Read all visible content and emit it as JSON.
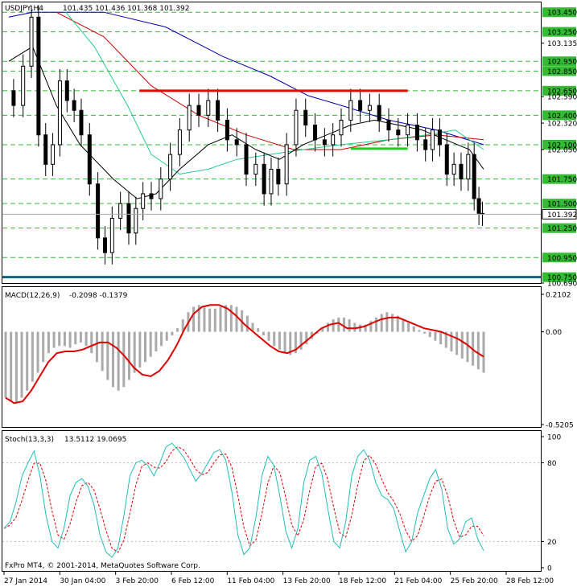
{
  "chart_data": [
    {
      "type": "line",
      "panel": "price",
      "title": "USDJPY,H4",
      "ohlc": {
        "open": 101.435,
        "high": 101.436,
        "low": 101.368,
        "close": 101.392
      },
      "ohlc_text": "101.435 101.436 101.368 101.392",
      "ylim": [
        100.69,
        103.55
      ],
      "ytick_labels": [
        "103.450",
        "103.250",
        "103.135",
        "102.950",
        "102.850",
        "102.650",
        "102.590",
        "102.400",
        "102.320",
        "102.100",
        "102.050",
        "101.750",
        "101.500",
        "101.392",
        "101.250",
        "100.950",
        "100.750",
        "100.690"
      ],
      "ytick_values": [
        103.45,
        103.25,
        103.135,
        102.95,
        102.85,
        102.65,
        102.59,
        102.4,
        102.32,
        102.1,
        102.05,
        101.75,
        101.5,
        101.392,
        101.25,
        100.95,
        100.75,
        100.69
      ],
      "highlighted_levels": [
        103.45,
        103.25,
        102.95,
        102.85,
        102.65,
        102.4,
        102.1,
        101.75,
        101.5,
        101.25,
        100.95,
        100.75
      ],
      "current_price": 101.392,
      "support_line": 100.75,
      "resistance_segment": {
        "level": 102.65,
        "x_start": 0.275,
        "x_end": 0.84
      },
      "green_segment": {
        "level": 102.06,
        "x_start": 0.72,
        "x_end": 0.84
      },
      "close_path": [
        [
          0.0,
          102.65
        ],
        [
          0.02,
          102.5
        ],
        [
          0.04,
          102.9
        ],
        [
          0.055,
          103.4
        ],
        [
          0.07,
          102.2
        ],
        [
          0.085,
          101.9
        ],
        [
          0.1,
          102.1
        ],
        [
          0.115,
          102.75
        ],
        [
          0.13,
          102.55
        ],
        [
          0.145,
          102.45
        ],
        [
          0.16,
          102.2
        ],
        [
          0.18,
          101.7
        ],
        [
          0.195,
          101.15
        ],
        [
          0.21,
          101.0
        ],
        [
          0.225,
          101.35
        ],
        [
          0.245,
          101.5
        ],
        [
          0.26,
          101.2
        ],
        [
          0.275,
          101.45
        ],
        [
          0.29,
          101.6
        ],
        [
          0.31,
          101.55
        ],
        [
          0.33,
          101.75
        ],
        [
          0.35,
          102.0
        ],
        [
          0.37,
          102.25
        ],
        [
          0.39,
          102.5
        ],
        [
          0.41,
          102.4
        ],
        [
          0.43,
          102.55
        ],
        [
          0.45,
          102.35
        ],
        [
          0.47,
          102.15
        ],
        [
          0.49,
          102.1
        ],
        [
          0.51,
          101.8
        ],
        [
          0.53,
          101.9
        ],
        [
          0.545,
          101.6
        ],
        [
          0.56,
          101.85
        ],
        [
          0.575,
          101.7
        ],
        [
          0.595,
          102.1
        ],
        [
          0.615,
          102.45
        ],
        [
          0.635,
          102.3
        ],
        [
          0.655,
          102.15
        ],
        [
          0.675,
          102.1
        ],
        [
          0.69,
          102.2
        ],
        [
          0.71,
          102.35
        ],
        [
          0.73,
          102.55
        ],
        [
          0.75,
          102.45
        ],
        [
          0.77,
          102.5
        ],
        [
          0.79,
          102.35
        ],
        [
          0.81,
          102.25
        ],
        [
          0.83,
          102.2
        ],
        [
          0.85,
          102.3
        ],
        [
          0.87,
          102.15
        ],
        [
          0.885,
          102.05
        ],
        [
          0.9,
          102.25
        ],
        [
          0.915,
          102.1
        ],
        [
          0.93,
          101.8
        ],
        [
          0.945,
          101.9
        ],
        [
          0.96,
          101.75
        ],
        [
          0.975,
          102.0
        ],
        [
          0.985,
          101.55
        ],
        [
          0.995,
          101.4
        ],
        [
          1.0,
          101.392
        ]
      ],
      "ma_lines": [
        {
          "color": "#0000aa",
          "points": [
            [
              0.0,
              103.4
            ],
            [
              0.05,
              103.45
            ],
            [
              0.2,
              103.45
            ],
            [
              0.33,
              103.3
            ],
            [
              0.45,
              103.0
            ],
            [
              0.55,
              102.8
            ],
            [
              0.63,
              102.6
            ],
            [
              0.7,
              102.5
            ],
            [
              0.8,
              102.35
            ],
            [
              0.9,
              102.25
            ],
            [
              1.0,
              102.1
            ]
          ]
        },
        {
          "color": "#cc0000",
          "points": [
            [
              0.1,
              103.45
            ],
            [
              0.2,
              103.2
            ],
            [
              0.3,
              102.7
            ],
            [
              0.4,
              102.4
            ],
            [
              0.5,
              102.2
            ],
            [
              0.6,
              102.05
            ],
            [
              0.7,
              102.05
            ],
            [
              0.8,
              102.15
            ],
            [
              0.9,
              102.2
            ],
            [
              1.0,
              102.15
            ]
          ]
        },
        {
          "color": "#22cc88",
          "points": [
            [
              0.12,
              103.45
            ],
            [
              0.18,
              103.1
            ],
            [
              0.25,
              102.5
            ],
            [
              0.3,
              102.0
            ],
            [
              0.36,
              101.8
            ],
            [
              0.42,
              101.85
            ],
            [
              0.48,
              101.95
            ],
            [
              0.55,
              102.0
            ],
            [
              0.62,
              102.05
            ],
            [
              0.7,
              102.1
            ],
            [
              0.8,
              102.15
            ],
            [
              0.88,
              102.2
            ],
            [
              0.94,
              102.25
            ],
            [
              1.0,
              102.05
            ]
          ]
        },
        {
          "color": "#000000",
          "points": [
            [
              0.0,
              102.95
            ],
            [
              0.05,
              103.1
            ],
            [
              0.1,
              102.5
            ],
            [
              0.15,
              102.1
            ],
            [
              0.22,
              101.75
            ],
            [
              0.27,
              101.55
            ],
            [
              0.31,
              101.6
            ],
            [
              0.36,
              101.85
            ],
            [
              0.42,
              102.1
            ],
            [
              0.47,
              102.2
            ],
            [
              0.52,
              102.05
            ],
            [
              0.57,
              101.95
            ],
            [
              0.62,
              102.1
            ],
            [
              0.67,
              102.2
            ],
            [
              0.72,
              102.3
            ],
            [
              0.77,
              102.35
            ],
            [
              0.82,
              102.3
            ],
            [
              0.87,
              102.25
            ],
            [
              0.92,
              102.15
            ],
            [
              0.97,
              102.05
            ],
            [
              1.0,
              101.85
            ]
          ]
        }
      ]
    },
    {
      "type": "bar",
      "panel": "macd",
      "title": "MACD(12,26,9)",
      "values_text": "-0.2098 -0.1379",
      "ylim": [
        -0.5205,
        0.2102
      ],
      "ytick_labels": [
        "0.2102",
        "0.00",
        "-0.5205"
      ],
      "ytick_values": [
        0.2102,
        0.0,
        -0.5205
      ],
      "bar_color": "#aaaaaa",
      "signal_color": "#dd0000",
      "bars": [
        -0.37,
        -0.39,
        -0.4,
        -0.37,
        -0.33,
        -0.28,
        -0.23,
        -0.17,
        -0.12,
        -0.09,
        -0.08,
        -0.08,
        -0.09,
        -0.07,
        -0.06,
        -0.08,
        -0.12,
        -0.17,
        -0.22,
        -0.27,
        -0.31,
        -0.33,
        -0.31,
        -0.27,
        -0.23,
        -0.2,
        -0.17,
        -0.14,
        -0.11,
        -0.08,
        -0.05,
        -0.02,
        0.02,
        0.07,
        0.11,
        0.14,
        0.15,
        0.14,
        0.13,
        0.13,
        0.14,
        0.15,
        0.15,
        0.14,
        0.12,
        0.09,
        0.05,
        0.02,
        -0.02,
        -0.05,
        -0.08,
        -0.1,
        -0.12,
        -0.13,
        -0.12,
        -0.1,
        -0.07,
        -0.04,
        -0.01,
        0.02,
        0.05,
        0.07,
        0.08,
        0.08,
        0.07,
        0.05,
        0.04,
        0.04,
        0.06,
        0.08,
        0.1,
        0.11,
        0.1,
        0.09,
        0.07,
        0.05,
        0.03,
        0.01,
        -0.01,
        -0.03,
        -0.05,
        -0.07,
        -0.09,
        -0.11,
        -0.13,
        -0.15,
        -0.17,
        -0.19,
        -0.21,
        -0.23
      ],
      "signal": [
        -0.37,
        -0.4,
        -0.39,
        -0.33,
        -0.25,
        -0.17,
        -0.12,
        -0.11,
        -0.11,
        -0.1,
        -0.08,
        -0.06,
        -0.06,
        -0.09,
        -0.14,
        -0.2,
        -0.24,
        -0.25,
        -0.22,
        -0.16,
        -0.08,
        0.02,
        0.1,
        0.14,
        0.15,
        0.15,
        0.13,
        0.09,
        0.04,
        0.0,
        -0.04,
        -0.08,
        -0.11,
        -0.12,
        -0.1,
        -0.06,
        -0.02,
        0.02,
        0.04,
        0.05,
        0.02,
        0.02,
        0.03,
        0.05,
        0.07,
        0.08,
        0.08,
        0.06,
        0.04,
        0.02,
        0.01,
        0.0,
        -0.02,
        -0.04,
        -0.07,
        -0.11,
        -0.14
      ]
    },
    {
      "type": "line",
      "panel": "stochastic",
      "title": "Stoch(13,3,3)",
      "values_text": "13.5112 19.0695",
      "ylim": [
        0,
        100
      ],
      "ytick_labels": [
        "100",
        "80",
        "20",
        "0"
      ],
      "ytick_values": [
        100,
        80,
        20,
        0
      ],
      "main_color": "#22bbbb",
      "signal_color": "#dd0000",
      "main": [
        30,
        35,
        50,
        70,
        80,
        89,
        70,
        40,
        20,
        15,
        30,
        55,
        65,
        68,
        62,
        48,
        25,
        12,
        8,
        15,
        40,
        70,
        80,
        82,
        78,
        70,
        80,
        92,
        95,
        90,
        84,
        75,
        66,
        72,
        80,
        88,
        90,
        82,
        58,
        25,
        10,
        15,
        38,
        70,
        85,
        78,
        55,
        28,
        15,
        30,
        65,
        82,
        85,
        72,
        45,
        20,
        15,
        35,
        70,
        85,
        90,
        82,
        65,
        55,
        52,
        45,
        28,
        12,
        20,
        42,
        55,
        68,
        75,
        60,
        30,
        18,
        22,
        35,
        38,
        22,
        13
      ]
    }
  ],
  "x_axis_labels": [
    "27 Jan 2014",
    "30 Jan 04:00",
    "3 Feb 20:00",
    "6 Feb 12:00",
    "11 Feb 04:00",
    "13 Feb 20:00",
    "18 Feb 12:00",
    "21 Feb 04:00",
    "25 Feb 20:00",
    "28 Feb 12:00"
  ],
  "footer": "FxPro MT4, © 2001-2014, MetaQuotes Software Corp."
}
